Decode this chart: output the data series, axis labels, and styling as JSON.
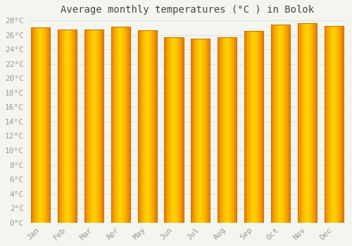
{
  "title": "Average monthly temperatures (°C ) in Bolok",
  "months": [
    "Jan",
    "Feb",
    "Mar",
    "Apr",
    "May",
    "Jun",
    "Jul",
    "Aug",
    "Sep",
    "Oct",
    "Nov",
    "Dec"
  ],
  "temperatures": [
    27.0,
    26.7,
    26.7,
    27.1,
    26.6,
    25.7,
    25.5,
    25.7,
    26.5,
    27.4,
    27.6,
    27.2
  ],
  "bar_color_center": "#FFD000",
  "bar_color_edge": "#E87800",
  "background_color": "#f5f5f0",
  "grid_color": "#dddddd",
  "ylim": [
    0,
    28
  ],
  "ytick_step": 2,
  "title_fontsize": 10,
  "tick_fontsize": 8,
  "tick_color": "#999999",
  "bar_outline_color": "#c87800",
  "bar_width": 0.72
}
